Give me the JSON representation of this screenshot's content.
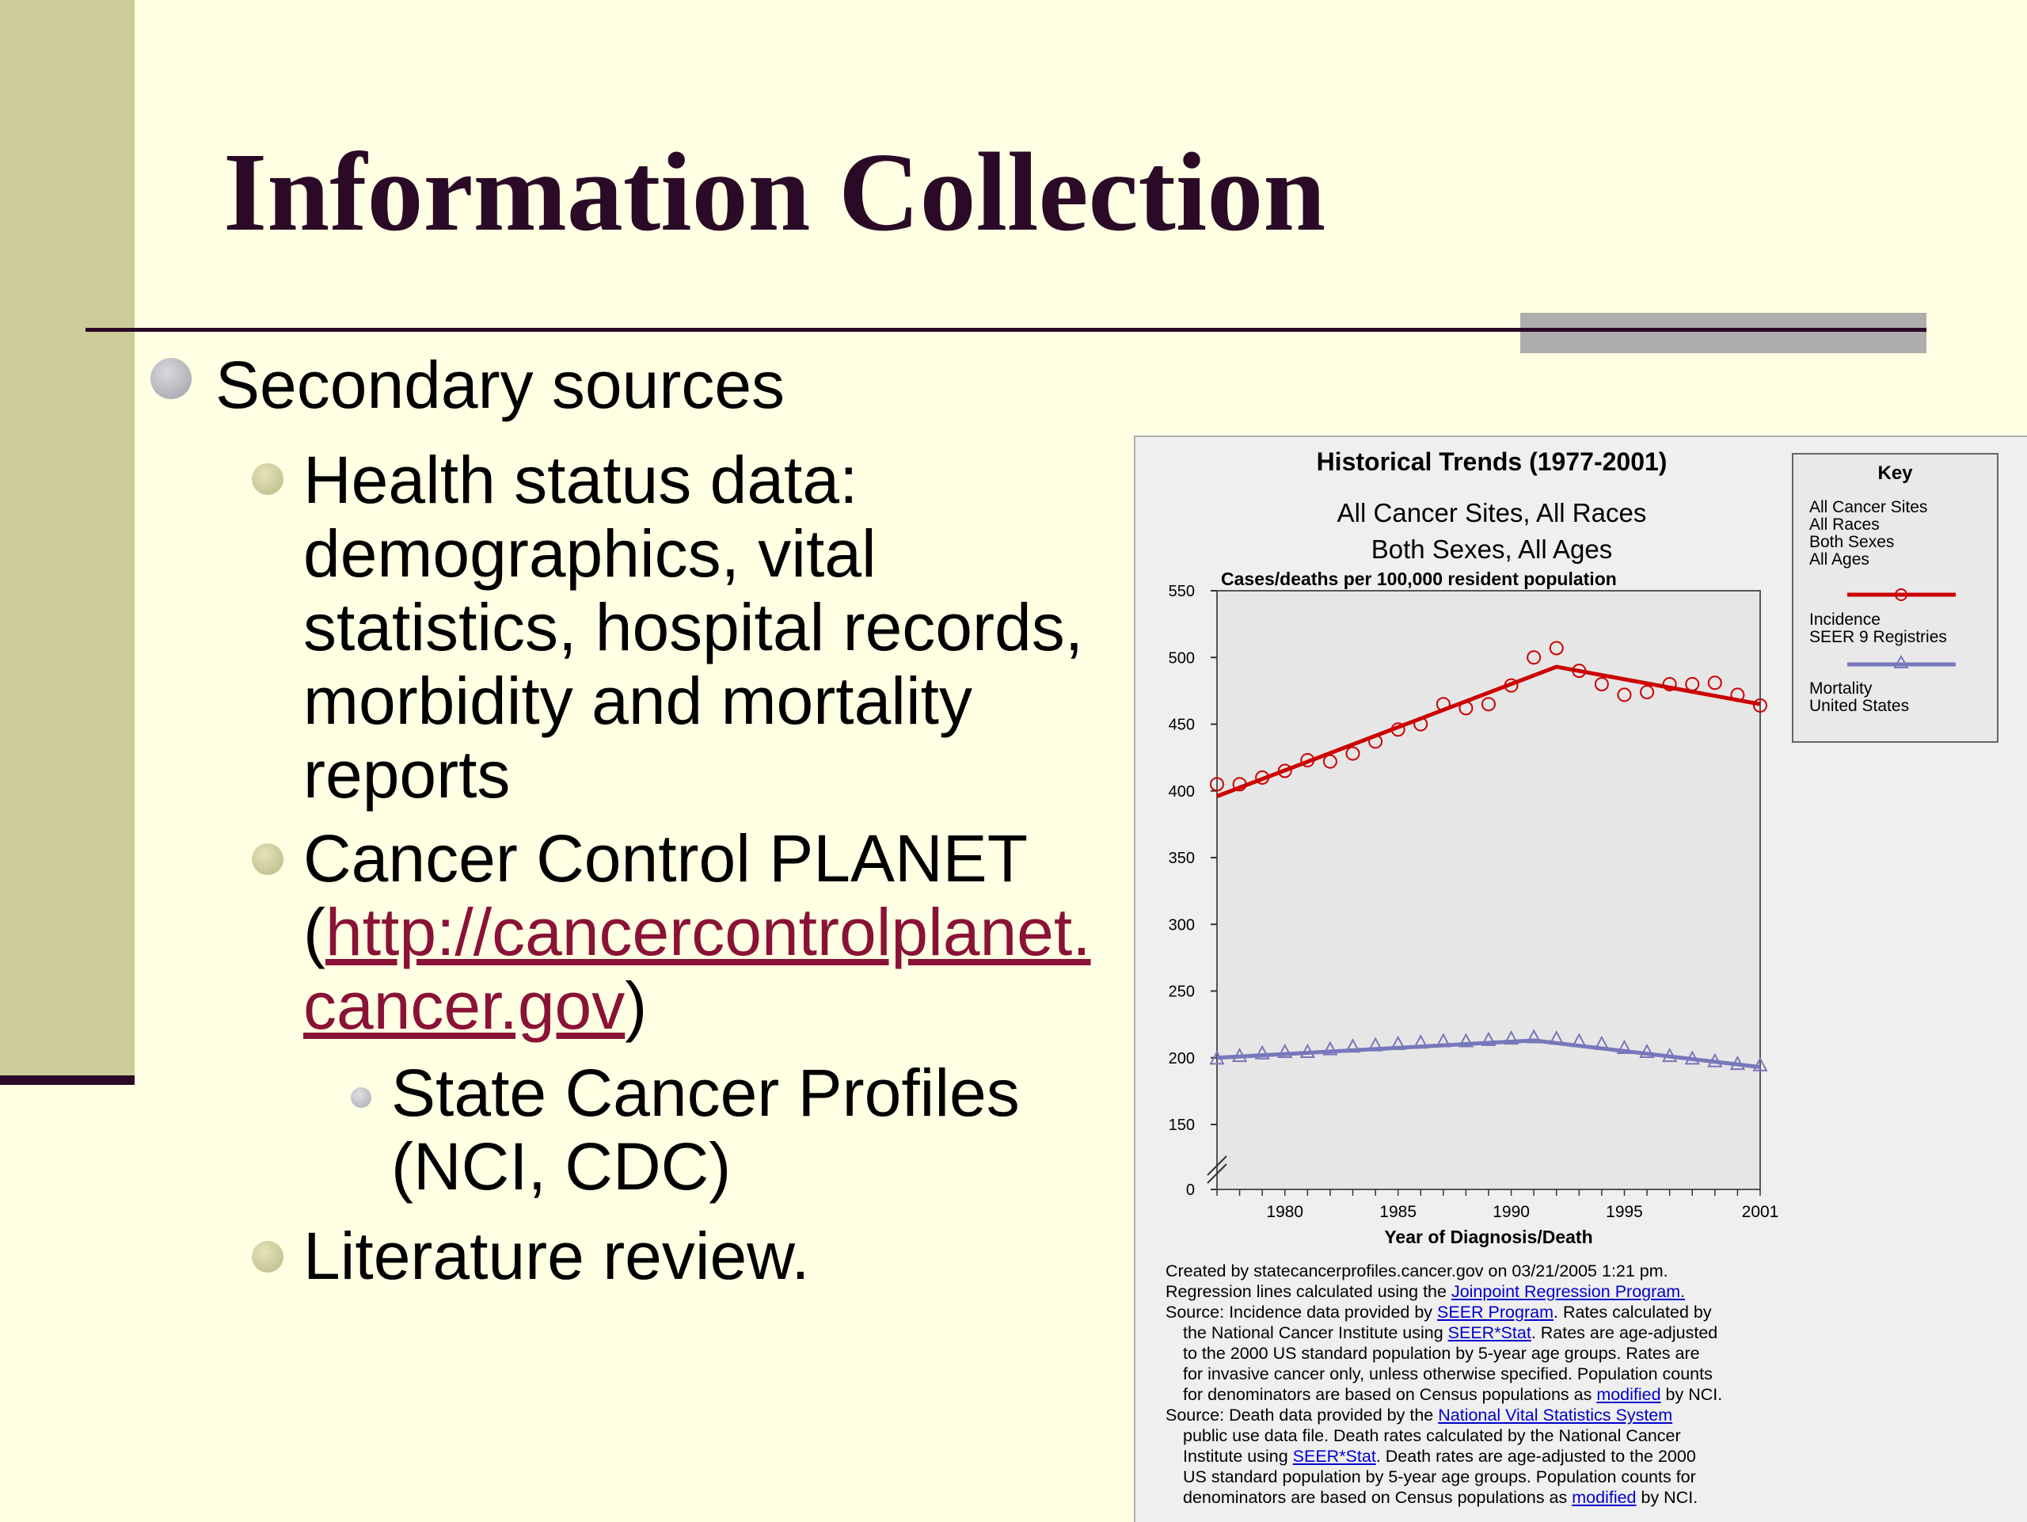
{
  "slide": {
    "title": "Information Collection",
    "colors": {
      "background": "#ffffe3",
      "title": "#2a0a26",
      "link": "#8a1236",
      "side_bar": "#cccc99"
    },
    "bullets": {
      "level1": "Secondary sources",
      "health_lines": [
        "Health status data:",
        "demographics, vital",
        "statistics, hospital records,",
        "morbidity and mortality",
        "reports"
      ],
      "planet_line1": "Cancer Control PLANET",
      "planet_open": "(",
      "planet_link_part1": "http://cancercontrolplanet.",
      "planet_link_part2": "cancer.gov",
      "planet_close": ")",
      "state_line1": "State Cancer Profiles",
      "state_line2": "(NCI, CDC)",
      "literature": "Literature review."
    }
  },
  "chart": {
    "title": "Historical Trends (1977-2001)",
    "subtitle1": "All Cancer Sites, All Races",
    "subtitle2": "Both Sexes, All Ages",
    "ylabel": "Cases/deaths per 100,000 resident population",
    "xlabel": "Year of Diagnosis/Death",
    "key": {
      "title": "Key",
      "lines": [
        "All Cancer Sites",
        "All Races",
        "Both Sexes",
        "All Ages"
      ],
      "incidence": [
        "Incidence",
        "SEER 9 Registries"
      ],
      "mortality": [
        "Mortality",
        "United States"
      ]
    },
    "notes": {
      "created": "Created by statecancerprofiles.cancer.gov on 03/21/2005 1:21 pm.",
      "regression_prefix": "Regression lines calculated using the ",
      "joinpoint": "Joinpoint Regression Program.",
      "source1_prefix": "Source: Incidence data provided by ",
      "seer_program": "SEER Program",
      "source1_suffix": ".  Rates calculated by",
      "nci_using": "the National Cancer Institute using ",
      "seerstat": "SEER*Stat",
      "rates_adj": ".  Rates are age-adjusted",
      "line_std": "to the 2000 US standard population by 5-year age groups.  Rates are",
      "line_invasive": "for invasive cancer only, unless otherwise specified.  Population counts",
      "denom_prefix": "for denominators are based on Census populations as ",
      "modified": "modified",
      "by_nci": " by NCI.",
      "source2_prefix": "Source: Death data provided by the ",
      "nvss": "National Vital Statistics System",
      "public_use": "public use data file.  Death rates calculated by the National Cancer",
      "institute_using": "Institute using ",
      "death_adj": ".  Death rates are age-adjusted to the 2000",
      "us_std": "US standard population by 5-year age groups. Population counts for",
      "denom2_prefix": "denominators are based on Census populations as "
    }
  },
  "chart_data": {
    "type": "line",
    "title": "Historical Trends (1977-2001)",
    "subtitle": [
      "All Cancer Sites, All Races",
      "Both Sexes, All Ages"
    ],
    "xlabel": "Year of Diagnosis/Death",
    "ylabel": "Cases/deaths per 100,000 resident population",
    "xlim": [
      1977,
      2001
    ],
    "ylim": [
      0,
      550
    ],
    "y_axis_break": "between 0 and 150",
    "x_ticks": [
      1980,
      1985,
      1990,
      1995,
      2001
    ],
    "y_ticks": [
      0,
      150,
      200,
      250,
      300,
      350,
      400,
      450,
      500,
      550
    ],
    "grid": false,
    "legend_position": "right",
    "x": [
      1977,
      1978,
      1979,
      1980,
      1981,
      1982,
      1983,
      1984,
      1985,
      1986,
      1987,
      1988,
      1989,
      1990,
      1991,
      1992,
      1993,
      1994,
      1995,
      1996,
      1997,
      1998,
      1999,
      2000,
      2001
    ],
    "series": [
      {
        "name": "Incidence SEER 9 Registries",
        "color": "#cc0000",
        "marker": "circle",
        "values": [
          405,
          405,
          410,
          415,
          423,
          422,
          428,
          437,
          446,
          450,
          465,
          462,
          465,
          479,
          500,
          507,
          490,
          480,
          472,
          474,
          480,
          480,
          481,
          472,
          464
        ],
        "regression": {
          "x": [
            1977,
            1992,
            2001
          ],
          "y": [
            396,
            493,
            465
          ]
        }
      },
      {
        "name": "Mortality United States",
        "color": "#7777bb",
        "marker": "triangle",
        "values": [
          199,
          201,
          203,
          204,
          204,
          206,
          208,
          209,
          210,
          211,
          212,
          212,
          213,
          214,
          215,
          214,
          212,
          210,
          207,
          204,
          201,
          199,
          197,
          195,
          194
        ],
        "regression": {
          "x": [
            1977,
            1991,
            2001
          ],
          "y": [
            200,
            213,
            193
          ]
        }
      }
    ]
  }
}
